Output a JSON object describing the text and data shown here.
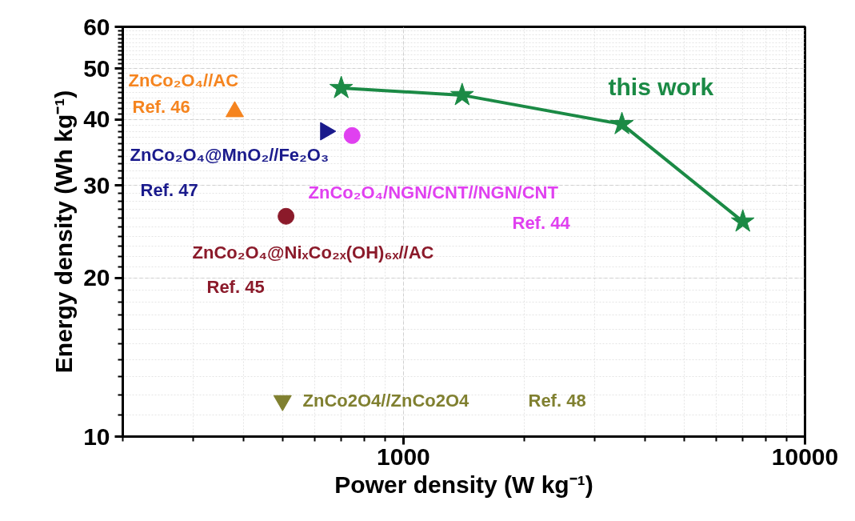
{
  "chart_data": {
    "type": "scatter",
    "xlabel": "Power density (W kg⁻¹)",
    "ylabel": "Energy density (Wh kg⁻¹)",
    "log": "xy",
    "xlim": [
      200,
      10000
    ],
    "xticks": [
      1000,
      10000
    ],
    "ylim": [
      10,
      60
    ],
    "yticks": [
      10,
      20,
      30,
      40,
      50,
      60
    ],
    "grid": true,
    "series": [
      {
        "name": "this work",
        "type": "line",
        "marker": "star",
        "color": "#1b8a45",
        "x": [
          700,
          1400,
          3500,
          7000
        ],
        "values": [
          45.9,
          44.5,
          39.2,
          25.6
        ]
      },
      {
        "name": "ZnCo₂O₄//AC",
        "marker": "triangle",
        "color": "#f5841f",
        "x": [
          380
        ],
        "values": [
          41.4
        ]
      },
      {
        "name": "ZnCo₂O₄@MnO₂//Fe₂O₃",
        "marker": "triangle",
        "color": "#1a1a8c",
        "x": [
          640
        ],
        "values": [
          38.0
        ]
      },
      {
        "name": "ZnCo₂O₄/NGN/CNT//NGN/CNT",
        "marker": "circle",
        "color": "#e040f0",
        "x": [
          745
        ],
        "values": [
          37.3
        ]
      },
      {
        "name": "ZnCo₂O₄@NiₓCo₂ₓ(OH)₆ₓ//AC",
        "marker": "circle",
        "color": "#8b1a2a",
        "x": [
          510
        ],
        "values": [
          26.2
        ]
      },
      {
        "name": "ZnCo2O4//ZnCo2O4",
        "marker": "triangle",
        "color": "#808030",
        "x": [
          500
        ],
        "values": [
          11.7
        ]
      }
    ],
    "annotations": [
      "Ref. 46",
      "Ref. 47",
      "Ref. 44",
      "Ref. 45",
      "Ref. 48"
    ]
  }
}
